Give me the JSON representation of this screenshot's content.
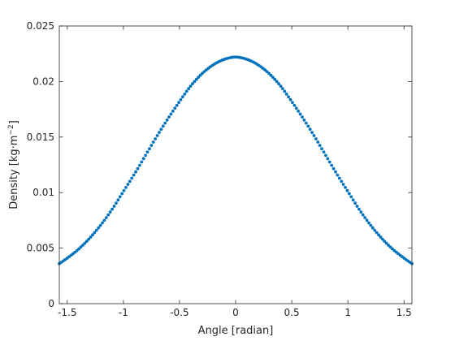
{
  "chart_data": {
    "type": "scatter",
    "title": "",
    "xlabel": "Angle [radian]",
    "ylabel": {
      "main": "Density [kg·m",
      "sup": "−2",
      "close": "]"
    },
    "xlim": [
      -1.5708,
      1.5708
    ],
    "ylim": [
      0,
      0.025
    ],
    "xticks": [
      -1.5,
      -1,
      -0.5,
      0,
      0.5,
      1,
      1.5
    ],
    "xtick_labels": [
      "-1.5",
      "-1",
      "-0.5",
      "0",
      "0.5",
      "1",
      "1.5"
    ],
    "yticks": [
      0,
      0.005,
      0.01,
      0.015,
      0.02,
      0.025
    ],
    "ytick_labels": [
      "0",
      "0.005",
      "0.01",
      "0.015",
      "0.02",
      "0.025"
    ],
    "grid": false,
    "box": true,
    "marker_color": "#0072BD",
    "series": [
      {
        "x": [
          -1.5708,
          -1.5,
          -1.4,
          -1.3,
          -1.2,
          -1.1,
          -1.0,
          -0.9,
          -0.8,
          -0.7,
          -0.6,
          -0.5,
          -0.4,
          -0.3,
          -0.2,
          -0.1,
          0,
          0.1,
          0.2,
          0.3,
          0.4,
          0.5,
          0.6,
          0.7,
          0.8,
          0.9,
          1.0,
          1.1,
          1.2,
          1.3,
          1.4,
          1.5,
          1.5708
        ],
        "y": [
          0.0036,
          0.0041,
          0.0049,
          0.0059,
          0.0071,
          0.0085,
          0.0101,
          0.0117,
          0.0134,
          0.0151,
          0.0167,
          0.0182,
          0.0196,
          0.0207,
          0.0215,
          0.022,
          0.0222,
          0.022,
          0.0215,
          0.0207,
          0.0196,
          0.0182,
          0.0167,
          0.0151,
          0.0134,
          0.0117,
          0.0101,
          0.0085,
          0.0071,
          0.0059,
          0.0049,
          0.0041,
          0.0036
        ]
      }
    ]
  }
}
